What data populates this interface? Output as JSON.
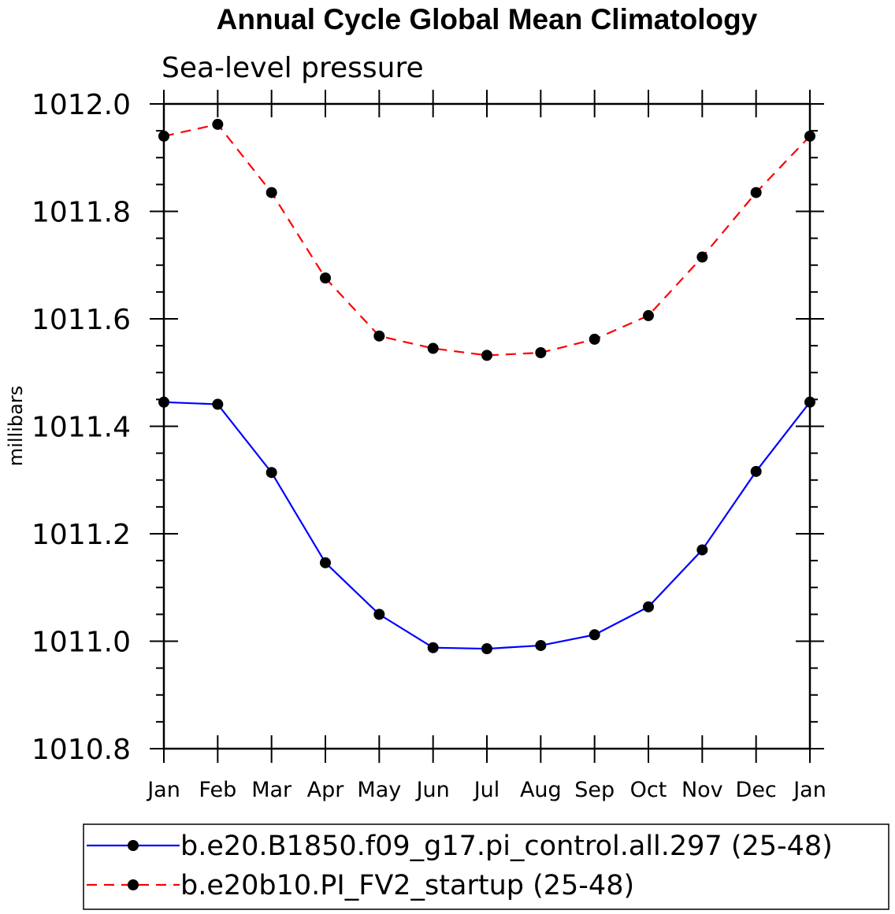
{
  "chart_data": {
    "type": "line",
    "title": "Annual Cycle Global Mean Climatology",
    "subtitle": "Sea-level pressure",
    "ylabel": "millibars",
    "xlabel": "",
    "categories": [
      "Jan",
      "Feb",
      "Mar",
      "Apr",
      "May",
      "Jun",
      "Jul",
      "Aug",
      "Sep",
      "Oct",
      "Nov",
      "Dec",
      "Jan"
    ],
    "ylim": [
      1010.8,
      1012.0
    ],
    "yticks": [
      "1010.8",
      "1011.0",
      "1011.2",
      "1011.4",
      "1011.6",
      "1011.8",
      "1012.0"
    ],
    "grid": false,
    "legend_position": "bottom",
    "series": [
      {
        "name": "b.e20.B1850.f09_g17.pi_control.all.297 (25-48)",
        "color": "#0000ff",
        "style": "solid",
        "values": [
          1011.445,
          1011.441,
          1011.314,
          1011.146,
          1011.05,
          1010.988,
          1010.986,
          1010.992,
          1011.012,
          1011.064,
          1011.17,
          1011.316,
          1011.445
        ]
      },
      {
        "name": "b.e20b10.PI_FV2_startup (25-48)",
        "color": "#ff0000",
        "style": "dashed",
        "values": [
          1011.94,
          1011.962,
          1011.835,
          1011.676,
          1011.568,
          1011.545,
          1011.532,
          1011.537,
          1011.562,
          1011.606,
          1011.715,
          1011.835,
          1011.94
        ]
      }
    ]
  }
}
